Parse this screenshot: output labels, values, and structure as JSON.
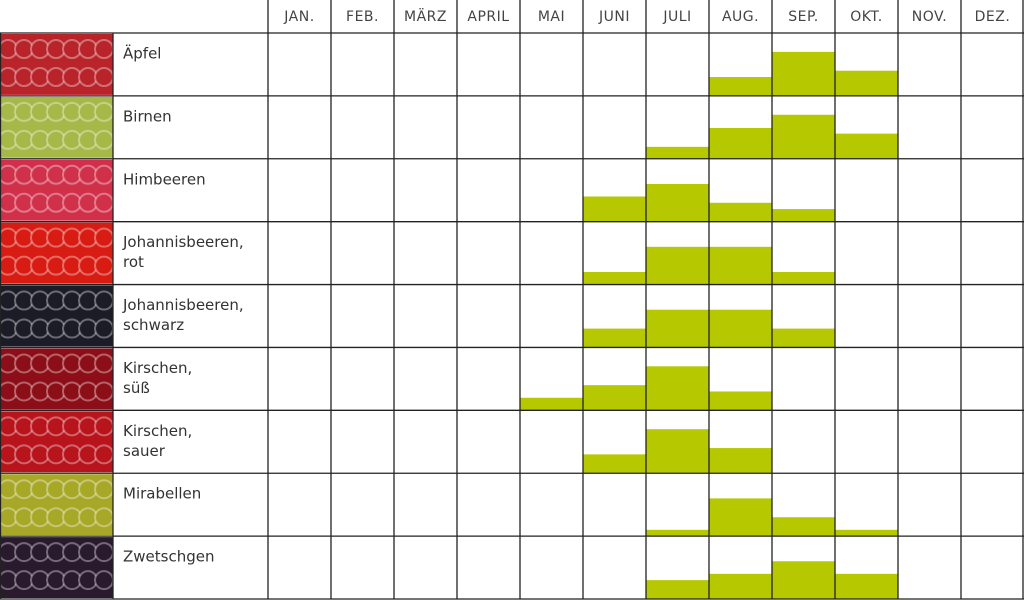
{
  "chart_data": {
    "type": "bar",
    "categories": [
      "JAN.",
      "FEB.",
      "MÄRZ",
      "APRIL",
      "MAI",
      "JUNI",
      "JULI",
      "AUG.",
      "SEP.",
      "OKT.",
      "NOV.",
      "DEZ."
    ],
    "ylim": [
      0,
      100
    ],
    "series": [
      {
        "name": [
          "Äpfel"
        ],
        "color": "#b5c800",
        "photo": "#b8242a",
        "values": [
          0,
          0,
          0,
          0,
          0,
          0,
          0,
          30,
          70,
          40,
          0,
          0
        ]
      },
      {
        "name": [
          "Birnen"
        ],
        "color": "#b5c800",
        "photo": "#a6b848",
        "values": [
          0,
          0,
          0,
          0,
          0,
          0,
          19,
          49,
          70,
          40,
          0,
          0
        ]
      },
      {
        "name": [
          "Himbeeren"
        ],
        "color": "#b5c800",
        "photo": "#d0304a",
        "values": [
          0,
          0,
          0,
          0,
          0,
          40,
          60,
          30,
          20,
          0,
          0,
          0
        ]
      },
      {
        "name": [
          "Johannisbeeren,",
          "rot"
        ],
        "color": "#b5c800",
        "photo": "#d81c14",
        "values": [
          0,
          0,
          0,
          0,
          0,
          20,
          60,
          60,
          20,
          0,
          0,
          0
        ]
      },
      {
        "name": [
          "Johannisbeeren,",
          "schwarz"
        ],
        "color": "#b5c800",
        "photo": "#1c1c28",
        "values": [
          0,
          0,
          0,
          0,
          0,
          30,
          60,
          60,
          30,
          0,
          0,
          0
        ]
      },
      {
        "name": [
          "Kirschen,",
          "süß"
        ],
        "color": "#b5c800",
        "photo": "#8c0e18",
        "values": [
          0,
          0,
          0,
          0,
          20,
          40,
          70,
          30,
          0,
          0,
          0,
          0
        ]
      },
      {
        "name": [
          "Kirschen,",
          "sauer"
        ],
        "color": "#b5c800",
        "photo": "#b8141c",
        "values": [
          0,
          0,
          0,
          0,
          0,
          30,
          70,
          40,
          0,
          0,
          0,
          0
        ]
      },
      {
        "name": [
          "Mirabellen"
        ],
        "color": "#b5c800",
        "photo": "#a8a828",
        "values": [
          0,
          0,
          0,
          0,
          0,
          0,
          10,
          60,
          30,
          10,
          0,
          0
        ]
      },
      {
        "name": [
          "Zwetschgen"
        ],
        "color": "#b5c800",
        "photo": "#2a1a2e",
        "values": [
          0,
          0,
          0,
          0,
          0,
          0,
          30,
          40,
          60,
          40,
          0,
          0
        ]
      }
    ]
  }
}
